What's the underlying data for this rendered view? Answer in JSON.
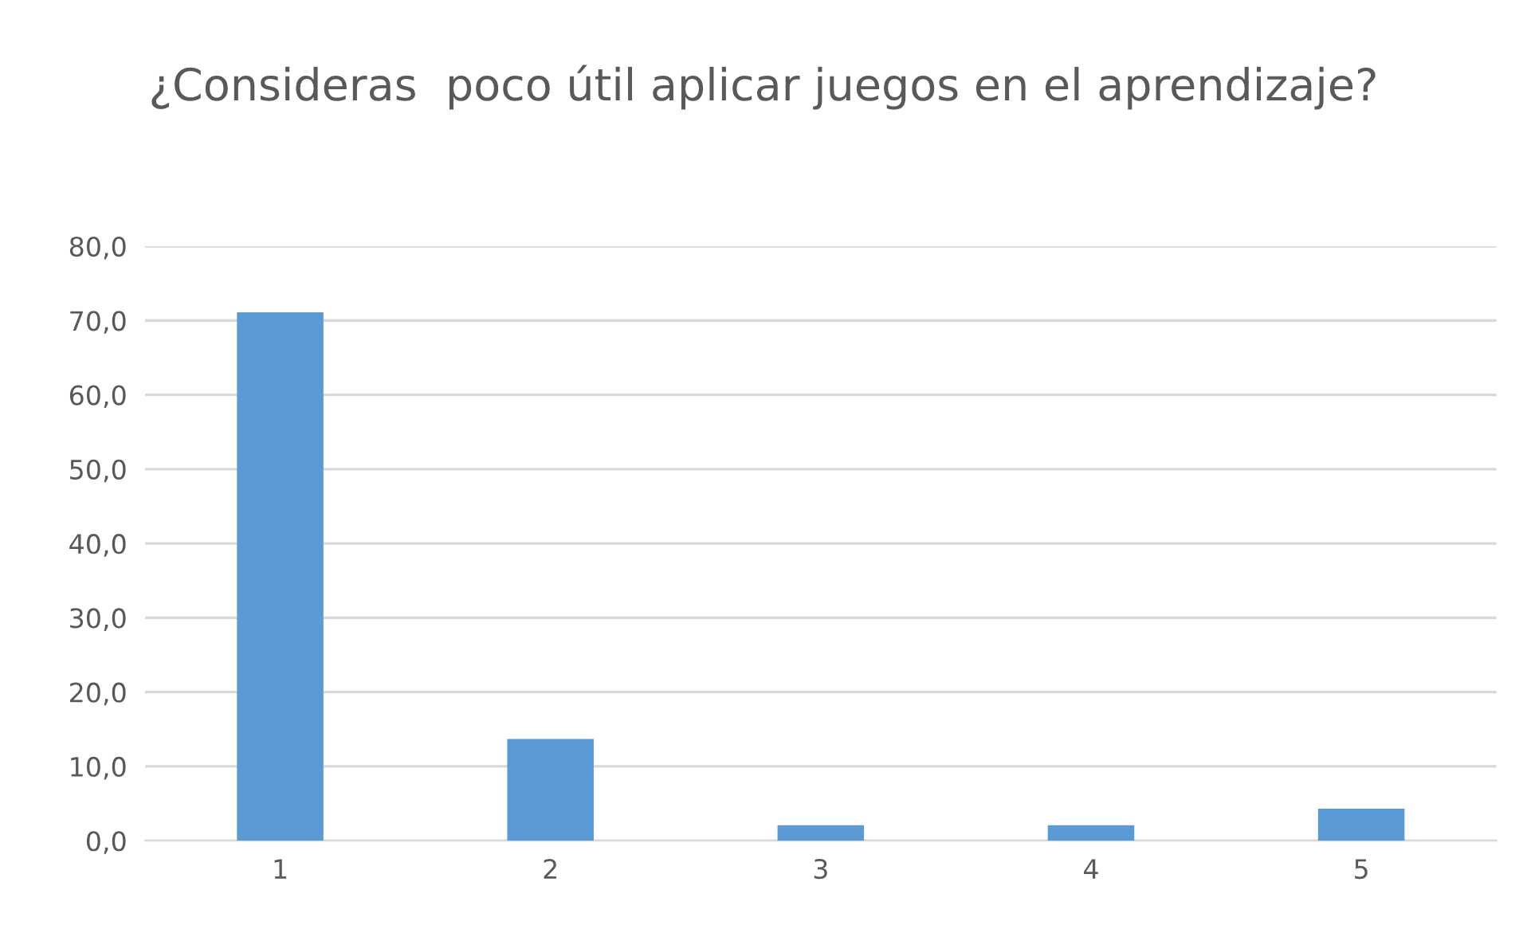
{
  "chart_data": {
    "type": "bar",
    "title": "¿Consideras  poco útil aplicar juegos en el aprendizaje?",
    "categories": [
      "1",
      "2",
      "3",
      "4",
      "5"
    ],
    "values": [
      71.1,
      13.7,
      2.1,
      2.1,
      4.3
    ],
    "color": "#5b9bd5",
    "ylim": [
      0,
      80
    ],
    "yticks": [
      {
        "value": 0,
        "label": "0,0"
      },
      {
        "value": 10,
        "label": "10,0"
      },
      {
        "value": 20,
        "label": "20,0"
      },
      {
        "value": 30,
        "label": "30,0"
      },
      {
        "value": 40,
        "label": "40,0"
      },
      {
        "value": 50,
        "label": "50,0"
      },
      {
        "value": 60,
        "label": "60,0"
      },
      {
        "value": 70,
        "label": "70,0"
      },
      {
        "value": 80,
        "label": "80,0"
      }
    ],
    "grid": "y",
    "legend": false
  }
}
